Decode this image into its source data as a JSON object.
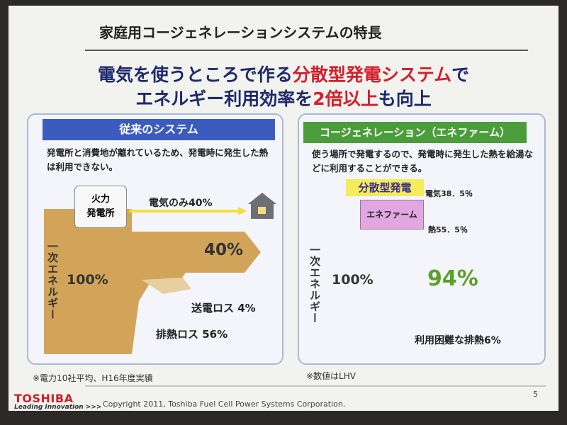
{
  "title": "家庭用コージェネレーションシステムの特長",
  "headline": {
    "line1": [
      "電気を使うところで作る",
      "分散型発電システム",
      "で"
    ],
    "line2": [
      "エネルギー利用効率を",
      "2倍以上",
      "も向上"
    ]
  },
  "left_panel": {
    "header": "従来のシステム",
    "description": "発電所と消費地が離れているため、発電時に発生した熱は利用できない。",
    "plant": [
      "火力",
      "発電所"
    ],
    "electricity_label": "電気のみ40%",
    "vertical_label": "一次エネルギー",
    "input": "100%",
    "output": "40%",
    "loss_transmission": "送電ロス 4%",
    "loss_heat": "排熱ロス 56%",
    "footnote": "※電力10社平均、H16年度実績"
  },
  "right_panel": {
    "header": "コージェネレーション（エネファーム）",
    "description": "使う場所で発電するので、発電時に発生した熱を給湯などに利用することができる。",
    "badge": "分散型発電",
    "unit": "エネファーム",
    "electricity_label": "電気38．5％",
    "heat_label": "熱55．5％",
    "vertical_label": "一次エネルギー",
    "input": "100%",
    "output": "94%",
    "loss": "利用困難な排熱6%",
    "footnote": "※数値はLHV"
  },
  "footer": {
    "brand": "TOSHIBA",
    "tagline": "Leading Innovation >>>",
    "copyright": "Copyright 2011, Toshiba Fuel Cell Power Systems Corporation.",
    "page": "5"
  }
}
